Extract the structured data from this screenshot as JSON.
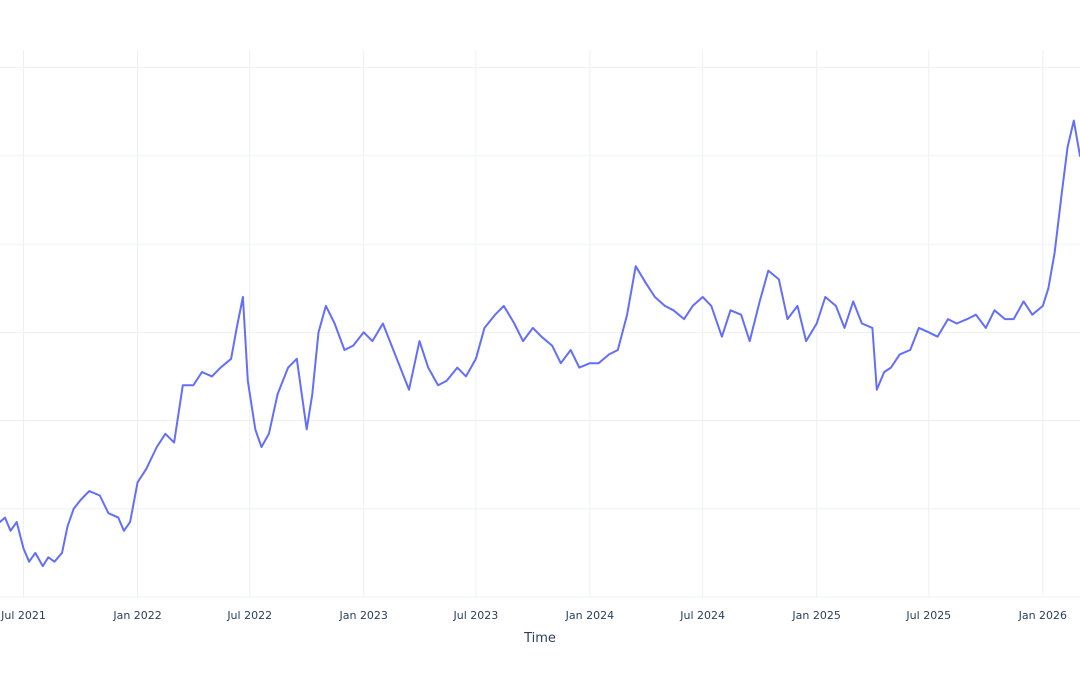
{
  "chart_data": {
    "type": "line",
    "title": "",
    "xlabel": "Time",
    "ylabel": "",
    "x_tick_labels": [
      "Jul 2021",
      "Jan 2022",
      "Jul 2022",
      "Jan 2023",
      "Jul 2023",
      "Jan 2024",
      "Jul 2024",
      "Jan 2025",
      "Jul 2025",
      "Jan 2026"
    ],
    "x_tick_dates": [
      "2021-07-01",
      "2022-01-01",
      "2022-07-01",
      "2023-01-01",
      "2023-07-01",
      "2024-01-01",
      "2024-07-01",
      "2025-01-01",
      "2025-07-01",
      "2026-01-01"
    ],
    "xlim": [
      "2021-05-24",
      "2026-03-02"
    ],
    "ylim": [
      0,
      6.2
    ],
    "y_gridlines": [
      0,
      1,
      2,
      3,
      4,
      5,
      6
    ],
    "y_tick_labels_visible": false,
    "grid": true,
    "legend": "none",
    "series": [
      {
        "color": "#636efa",
        "x": [
          "2021-05-24",
          "2021-06-01",
          "2021-06-10",
          "2021-06-20",
          "2021-07-01",
          "2021-07-10",
          "2021-07-20",
          "2021-08-01",
          "2021-08-10",
          "2021-08-20",
          "2021-09-01",
          "2021-09-10",
          "2021-09-20",
          "2021-10-01",
          "2021-10-15",
          "2021-11-01",
          "2021-11-15",
          "2021-12-01",
          "2021-12-10",
          "2021-12-20",
          "2022-01-01",
          "2022-01-15",
          "2022-02-01",
          "2022-02-15",
          "2022-03-01",
          "2022-03-15",
          "2022-04-01",
          "2022-04-15",
          "2022-05-01",
          "2022-05-15",
          "2022-06-01",
          "2022-06-10",
          "2022-06-20",
          "2022-06-28",
          "2022-07-10",
          "2022-07-20",
          "2022-08-01",
          "2022-08-15",
          "2022-09-01",
          "2022-09-15",
          "2022-10-01",
          "2022-10-10",
          "2022-10-20",
          "2022-11-01",
          "2022-11-15",
          "2022-12-01",
          "2022-12-15",
          "2023-01-01",
          "2023-01-15",
          "2023-02-01",
          "2023-02-15",
          "2023-03-01",
          "2023-03-15",
          "2023-04-01",
          "2023-04-15",
          "2023-05-01",
          "2023-05-15",
          "2023-06-01",
          "2023-06-15",
          "2023-07-01",
          "2023-07-15",
          "2023-08-01",
          "2023-08-15",
          "2023-09-01",
          "2023-09-15",
          "2023-10-01",
          "2023-10-15",
          "2023-11-01",
          "2023-11-15",
          "2023-12-01",
          "2023-12-15",
          "2024-01-01",
          "2024-01-15",
          "2024-02-01",
          "2024-02-15",
          "2024-03-01",
          "2024-03-15",
          "2024-04-01",
          "2024-04-15",
          "2024-05-01",
          "2024-05-15",
          "2024-06-01",
          "2024-06-15",
          "2024-07-01",
          "2024-07-15",
          "2024-08-01",
          "2024-08-15",
          "2024-09-01",
          "2024-09-15",
          "2024-10-01",
          "2024-10-15",
          "2024-11-01",
          "2024-11-15",
          "2024-12-01",
          "2024-12-15",
          "2025-01-01",
          "2025-01-15",
          "2025-02-01",
          "2025-02-15",
          "2025-03-01",
          "2025-03-15",
          "2025-04-01",
          "2025-04-08",
          "2025-04-20",
          "2025-05-01",
          "2025-05-15",
          "2025-06-01",
          "2025-06-15",
          "2025-07-01",
          "2025-07-15",
          "2025-08-01",
          "2025-08-15",
          "2025-09-01",
          "2025-09-15",
          "2025-10-01",
          "2025-10-15",
          "2025-11-01",
          "2025-11-15",
          "2025-12-01",
          "2025-12-15",
          "2026-01-01",
          "2026-01-10",
          "2026-01-20",
          "2026-02-01",
          "2026-02-10",
          "2026-02-20",
          "2026-03-02"
        ],
        "values": [
          0.85,
          0.9,
          0.75,
          0.85,
          0.55,
          0.4,
          0.5,
          0.35,
          0.45,
          0.4,
          0.5,
          0.8,
          1.0,
          1.1,
          1.2,
          1.15,
          0.95,
          0.9,
          0.75,
          0.85,
          1.3,
          1.45,
          1.7,
          1.85,
          1.75,
          2.4,
          2.4,
          2.55,
          2.5,
          2.6,
          2.7,
          3.05,
          3.4,
          2.45,
          1.9,
          1.7,
          1.85,
          2.3,
          2.6,
          2.7,
          1.9,
          2.3,
          3.0,
          3.3,
          3.1,
          2.8,
          2.85,
          3.0,
          2.9,
          3.1,
          2.85,
          2.6,
          2.35,
          2.9,
          2.6,
          2.4,
          2.45,
          2.6,
          2.5,
          2.7,
          3.05,
          3.2,
          3.3,
          3.1,
          2.9,
          3.05,
          2.95,
          2.85,
          2.65,
          2.8,
          2.6,
          2.65,
          2.65,
          2.75,
          2.8,
          3.2,
          3.75,
          3.55,
          3.4,
          3.3,
          3.25,
          3.15,
          3.3,
          3.4,
          3.3,
          2.95,
          3.25,
          3.2,
          2.9,
          3.35,
          3.7,
          3.6,
          3.15,
          3.3,
          2.9,
          3.1,
          3.4,
          3.3,
          3.05,
          3.35,
          3.1,
          3.05,
          2.35,
          2.55,
          2.6,
          2.75,
          2.8,
          3.05,
          3.0,
          2.95,
          3.15,
          3.1,
          3.15,
          3.2,
          3.05,
          3.25,
          3.15,
          3.15,
          3.35,
          3.2,
          3.3,
          3.5,
          3.9,
          4.6,
          5.1,
          5.4,
          5.0
        ]
      }
    ]
  }
}
